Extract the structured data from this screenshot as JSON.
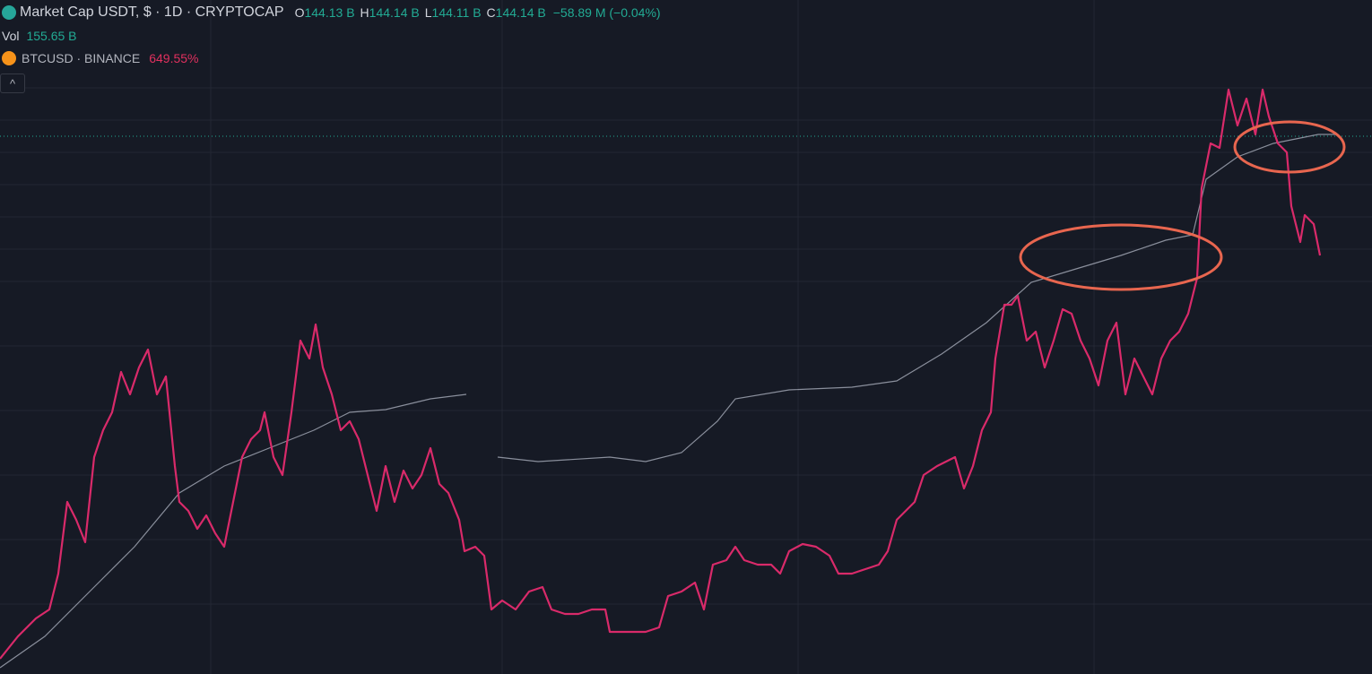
{
  "legend": {
    "main": {
      "title": "Market Cap USDT, $ · 1D · CRYPTOCAP",
      "ohlc": [
        {
          "key": "O",
          "value": "144.13 B"
        },
        {
          "key": "H",
          "value": "144.14 B"
        },
        {
          "key": "L",
          "value": "144.11 B"
        },
        {
          "key": "C",
          "value": "144.14 B"
        }
      ],
      "change": "−58.89 M (−0.04%)"
    },
    "volume": {
      "label": "Vol",
      "value": "155.65 B"
    },
    "compare": {
      "symbol": "BTCUSD · BINANCE",
      "value": "649.55%"
    },
    "collapse_button": "^"
  }
}
